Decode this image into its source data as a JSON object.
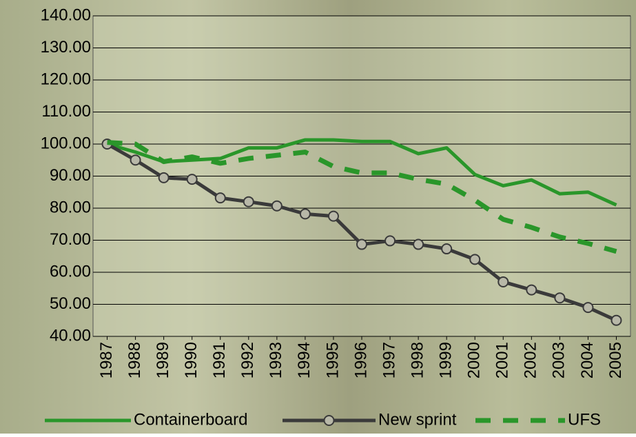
{
  "chart_data": {
    "type": "line",
    "categories": [
      "1987",
      "1988",
      "1989",
      "1990",
      "1991",
      "1992",
      "1993",
      "1994",
      "1995",
      "1996",
      "1997",
      "1998",
      "1999",
      "2000",
      "2001",
      "2002",
      "2003",
      "2004",
      "2005"
    ],
    "series": [
      {
        "name": "Containerboard",
        "color": "#2a962a",
        "style": "solid",
        "values": [
          100,
          97.5,
          94.5,
          95,
          95.5,
          98.8,
          98.8,
          101.3,
          101.3,
          100.8,
          100.8,
          97,
          98.8,
          90.5,
          87,
          88.8,
          84.5,
          85,
          81
        ]
      },
      {
        "name": "New sprint",
        "color": "#3a3a3a",
        "style": "solid",
        "marker": "circle",
        "values": [
          100,
          95,
          89.5,
          89,
          83.2,
          82,
          80.7,
          78.2,
          77.5,
          68.7,
          69.8,
          68.7,
          67.3,
          64,
          57,
          54.5,
          52,
          49,
          45
        ]
      },
      {
        "name": "UFS",
        "color": "#2a962a",
        "style": "dashed",
        "values": [
          100.5,
          100,
          94.5,
          96,
          94,
          95.5,
          96.5,
          97.5,
          93,
          91,
          91,
          89,
          87.5,
          82.5,
          76.5,
          74,
          71,
          69,
          66.5
        ]
      }
    ],
    "ylim": [
      40,
      140
    ],
    "yticks": [
      {
        "value": 40,
        "label": "40.00"
      },
      {
        "value": 50,
        "label": "50.00"
      },
      {
        "value": 60,
        "label": "60.00"
      },
      {
        "value": 70,
        "label": "70.00"
      },
      {
        "value": 80,
        "label": "80.00"
      },
      {
        "value": 90,
        "label": "90.00"
      },
      {
        "value": 100,
        "label": "100.00"
      },
      {
        "value": 110,
        "label": "110.00"
      },
      {
        "value": 120,
        "label": "120.00"
      },
      {
        "value": 130,
        "label": "130.00"
      },
      {
        "value": 140,
        "label": "140.00"
      }
    ],
    "grid": true,
    "legend": "bottom"
  }
}
